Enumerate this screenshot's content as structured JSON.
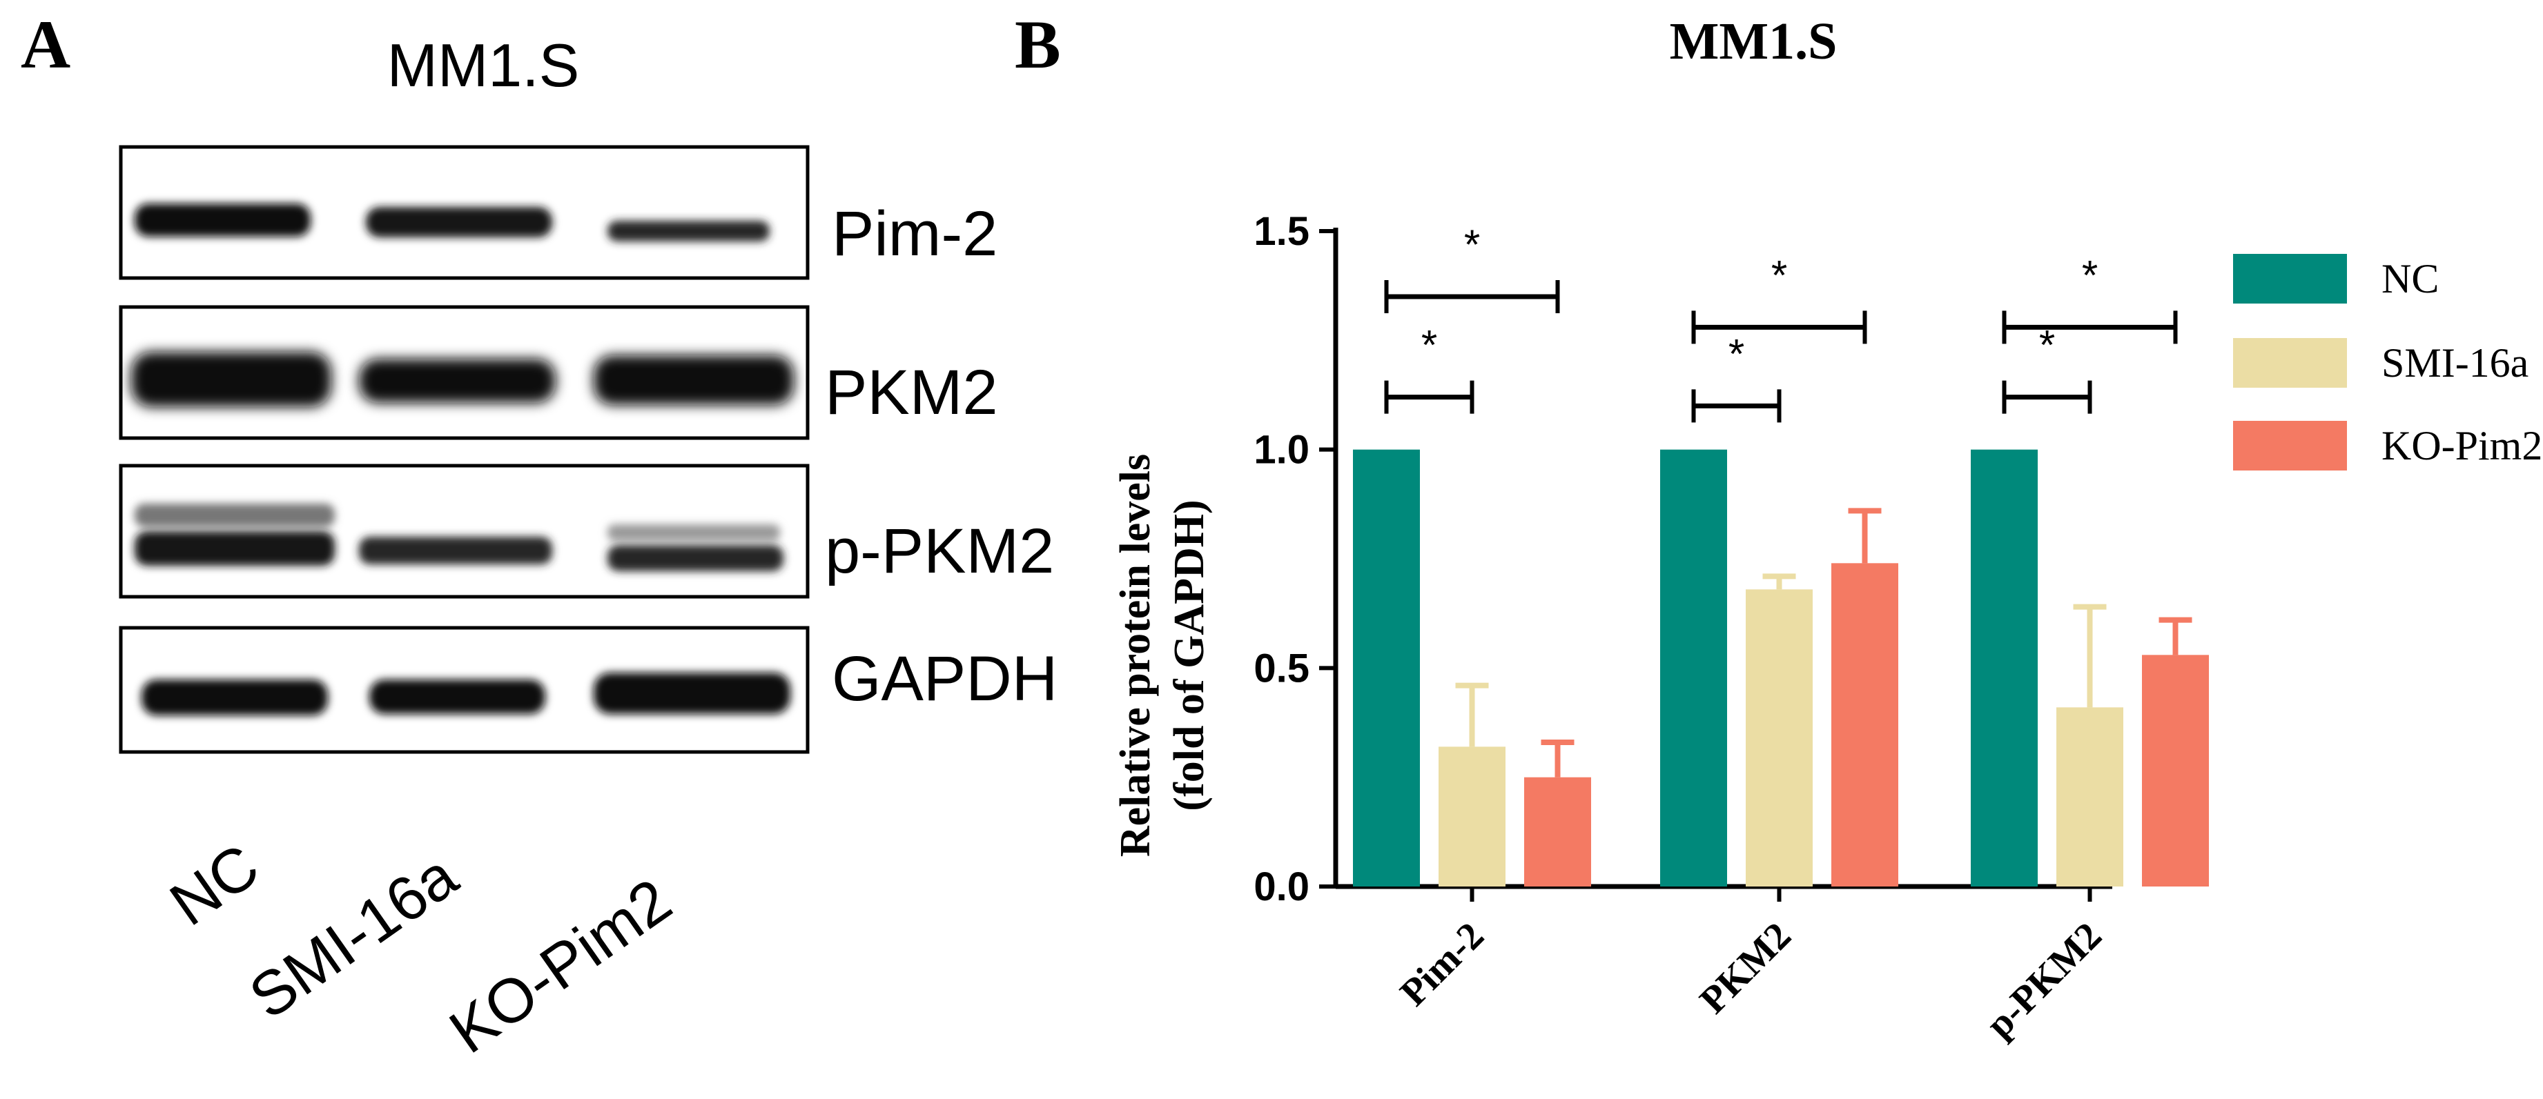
{
  "panel_a": {
    "letter": "A",
    "title": "MM1.S",
    "blot_labels": [
      "Pim-2",
      "PKM2",
      "p-PKM2",
      "GAPDH"
    ],
    "lane_labels": [
      "NC",
      "SMI-16a",
      "KO-Pim2"
    ]
  },
  "chart_data": {
    "type": "bar",
    "panel_letter": "B",
    "title": "MM1.S",
    "ylabel_line1": "Relative protein levels",
    "ylabel_line2": "(fold of GAPDH)",
    "xlabel": "",
    "categories": [
      "Pim-2",
      "PKM2",
      "p-PKM2"
    ],
    "series": [
      {
        "name": "NC",
        "color": "#00897b",
        "values": [
          1.0,
          1.0,
          1.0
        ],
        "errors": [
          0,
          0,
          0
        ]
      },
      {
        "name": "SMI-16a",
        "color": "#ebdda4",
        "values": [
          0.32,
          0.68,
          0.41
        ],
        "errors": [
          0.14,
          0.03,
          0.23
        ]
      },
      {
        "name": "KO-Pim2",
        "color": "#f47a63",
        "values": [
          0.25,
          0.74,
          0.53
        ],
        "errors": [
          0.08,
          0.12,
          0.08
        ]
      }
    ],
    "ylim": [
      0,
      1.5
    ],
    "yticks": [
      "0.0",
      "0.5",
      "1.0",
      "1.5"
    ],
    "legend_position": "right",
    "significance": [
      {
        "category": "Pim-2",
        "compare": [
          "NC",
          "SMI-16a"
        ],
        "label": "*"
      },
      {
        "category": "Pim-2",
        "compare": [
          "NC",
          "KO-Pim2"
        ],
        "label": "*"
      },
      {
        "category": "PKM2",
        "compare": [
          "NC",
          "SMI-16a"
        ],
        "label": "*"
      },
      {
        "category": "PKM2",
        "compare": [
          "NC",
          "KO-Pim2"
        ],
        "label": "*"
      },
      {
        "category": "p-PKM2",
        "compare": [
          "NC",
          "SMI-16a"
        ],
        "label": "*"
      },
      {
        "category": "p-PKM2",
        "compare": [
          "NC",
          "KO-Pim2"
        ],
        "label": "*"
      }
    ]
  }
}
